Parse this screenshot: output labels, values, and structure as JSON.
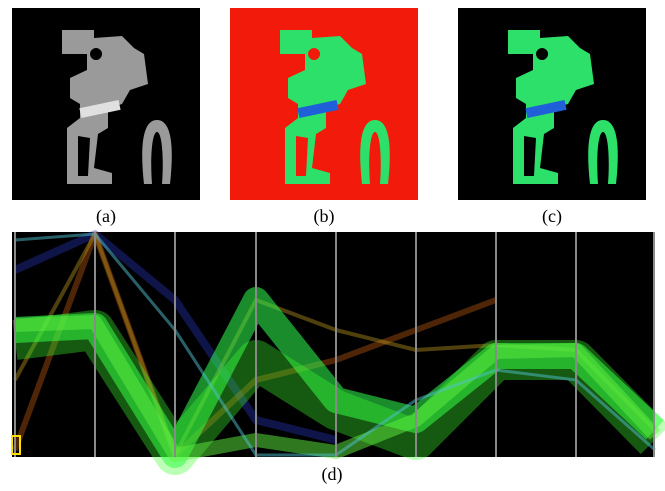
{
  "panels": [
    {
      "label": "(a)"
    },
    {
      "label": "(b)"
    },
    {
      "label": "(c)"
    }
  ],
  "plot": {
    "label": "(d)"
  }
}
